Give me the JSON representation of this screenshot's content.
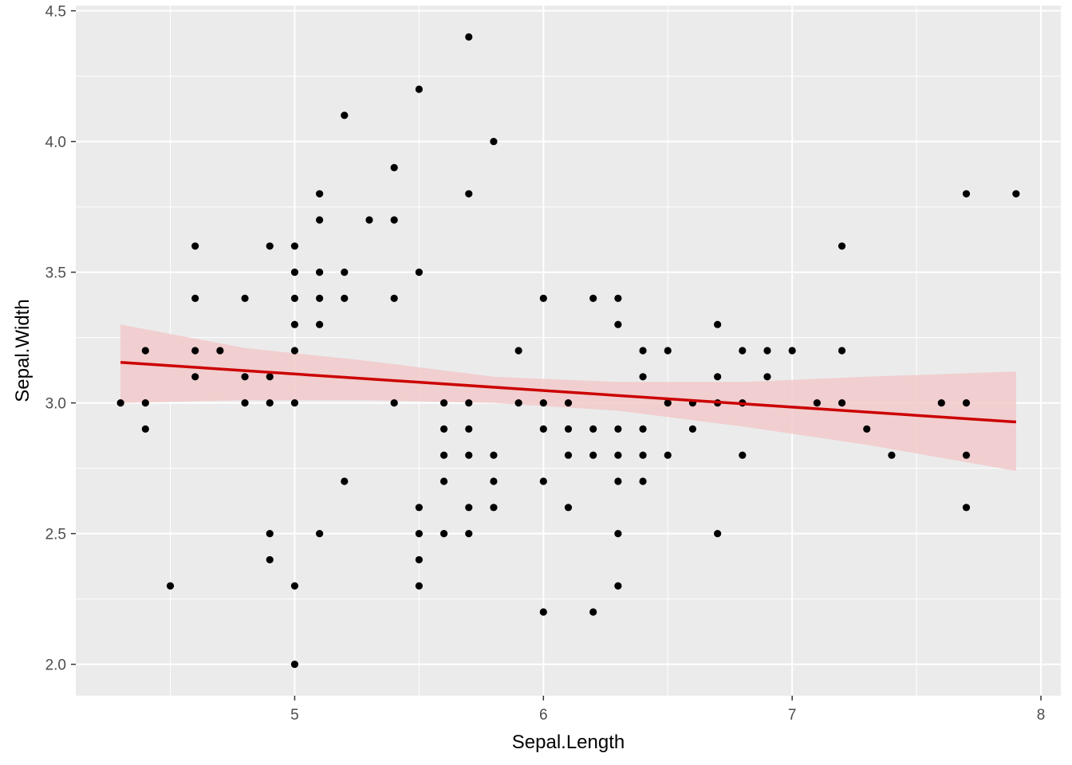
{
  "chart_data": {
    "type": "scatter",
    "title": "",
    "xlabel": "Sepal.Length",
    "ylabel": "Sepal.Width",
    "xlim": [
      4.12,
      8.08
    ],
    "ylim": [
      1.88,
      4.52
    ],
    "x_ticks": [
      5,
      6,
      7,
      8
    ],
    "x_tick_labels": [
      "5",
      "6",
      "7",
      "8"
    ],
    "y_ticks": [
      2.0,
      2.5,
      3.0,
      3.5,
      4.0,
      4.5
    ],
    "y_tick_labels": [
      "2.0",
      "2.5",
      "3.0",
      "3.5",
      "4.0",
      "4.5"
    ],
    "grid": true,
    "legend": "none",
    "colors": {
      "panel": "#ebebeb",
      "grid_major": "#ffffff",
      "points": "#000000",
      "fit_line": "#cc0000",
      "confidence_band": "#f2c9ca"
    },
    "points": [
      [
        4.3,
        3.0
      ],
      [
        4.4,
        3.2
      ],
      [
        4.4,
        3.0
      ],
      [
        4.4,
        2.9
      ],
      [
        4.5,
        2.3
      ],
      [
        4.6,
        3.6
      ],
      [
        4.6,
        3.4
      ],
      [
        4.6,
        3.2
      ],
      [
        4.6,
        3.1
      ],
      [
        4.7,
        3.2
      ],
      [
        4.8,
        3.4
      ],
      [
        4.8,
        3.1
      ],
      [
        4.8,
        3.0
      ],
      [
        4.9,
        3.6
      ],
      [
        4.9,
        3.1
      ],
      [
        4.9,
        3.0
      ],
      [
        4.9,
        2.5
      ],
      [
        4.9,
        2.4
      ],
      [
        5.0,
        3.6
      ],
      [
        5.0,
        3.5
      ],
      [
        5.0,
        3.4
      ],
      [
        5.0,
        3.3
      ],
      [
        5.0,
        3.2
      ],
      [
        5.0,
        3.0
      ],
      [
        5.0,
        2.3
      ],
      [
        5.0,
        2.0
      ],
      [
        5.1,
        3.8
      ],
      [
        5.1,
        3.7
      ],
      [
        5.1,
        3.5
      ],
      [
        5.1,
        3.4
      ],
      [
        5.1,
        3.3
      ],
      [
        5.1,
        2.5
      ],
      [
        5.2,
        4.1
      ],
      [
        5.2,
        3.5
      ],
      [
        5.2,
        3.4
      ],
      [
        5.2,
        2.7
      ],
      [
        5.3,
        3.7
      ],
      [
        5.4,
        3.9
      ],
      [
        5.4,
        3.7
      ],
      [
        5.4,
        3.4
      ],
      [
        5.4,
        3.0
      ],
      [
        5.5,
        4.2
      ],
      [
        5.5,
        3.5
      ],
      [
        5.5,
        2.6
      ],
      [
        5.5,
        2.5
      ],
      [
        5.5,
        2.4
      ],
      [
        5.5,
        2.3
      ],
      [
        5.6,
        3.0
      ],
      [
        5.6,
        2.9
      ],
      [
        5.6,
        2.8
      ],
      [
        5.6,
        2.7
      ],
      [
        5.6,
        2.5
      ],
      [
        5.7,
        4.4
      ],
      [
        5.7,
        3.8
      ],
      [
        5.7,
        3.0
      ],
      [
        5.7,
        2.9
      ],
      [
        5.7,
        2.8
      ],
      [
        5.7,
        2.6
      ],
      [
        5.7,
        2.5
      ],
      [
        5.8,
        4.0
      ],
      [
        5.8,
        2.8
      ],
      [
        5.8,
        2.7
      ],
      [
        5.8,
        2.6
      ],
      [
        5.9,
        3.2
      ],
      [
        5.9,
        3.0
      ],
      [
        6.0,
        3.4
      ],
      [
        6.0,
        3.0
      ],
      [
        6.0,
        2.9
      ],
      [
        6.0,
        2.7
      ],
      [
        6.0,
        2.2
      ],
      [
        6.1,
        3.0
      ],
      [
        6.1,
        2.9
      ],
      [
        6.1,
        2.8
      ],
      [
        6.1,
        2.6
      ],
      [
        6.2,
        3.4
      ],
      [
        6.2,
        2.9
      ],
      [
        6.2,
        2.8
      ],
      [
        6.2,
        2.2
      ],
      [
        6.3,
        3.4
      ],
      [
        6.3,
        3.3
      ],
      [
        6.3,
        2.9
      ],
      [
        6.3,
        2.8
      ],
      [
        6.3,
        2.7
      ],
      [
        6.3,
        2.5
      ],
      [
        6.3,
        2.3
      ],
      [
        6.4,
        3.2
      ],
      [
        6.4,
        3.1
      ],
      [
        6.4,
        2.9
      ],
      [
        6.4,
        2.8
      ],
      [
        6.4,
        2.7
      ],
      [
        6.5,
        3.2
      ],
      [
        6.5,
        3.0
      ],
      [
        6.5,
        2.8
      ],
      [
        6.6,
        3.0
      ],
      [
        6.6,
        2.9
      ],
      [
        6.7,
        3.3
      ],
      [
        6.7,
        3.1
      ],
      [
        6.7,
        3.0
      ],
      [
        6.7,
        2.5
      ],
      [
        6.8,
        3.2
      ],
      [
        6.8,
        3.0
      ],
      [
        6.8,
        2.8
      ],
      [
        6.9,
        3.2
      ],
      [
        6.9,
        3.1
      ],
      [
        7.0,
        3.2
      ],
      [
        7.1,
        3.0
      ],
      [
        7.2,
        3.6
      ],
      [
        7.2,
        3.2
      ],
      [
        7.2,
        3.0
      ],
      [
        7.3,
        2.9
      ],
      [
        7.4,
        2.8
      ],
      [
        7.6,
        3.0
      ],
      [
        7.7,
        3.8
      ],
      [
        7.7,
        3.0
      ],
      [
        7.7,
        2.8
      ],
      [
        7.7,
        2.6
      ],
      [
        7.9,
        3.8
      ]
    ],
    "fit_line": {
      "method": "lm",
      "x": [
        4.3,
        7.9
      ],
      "y": [
        3.155,
        2.927
      ]
    },
    "confidence_band": {
      "x": [
        4.3,
        4.8,
        5.3,
        5.8,
        6.3,
        6.8,
        7.3,
        7.9
      ],
      "lower": [
        3.0,
        3.01,
        3.01,
        3.0,
        2.97,
        2.91,
        2.84,
        2.74
      ],
      "upper": [
        3.3,
        3.21,
        3.16,
        3.1,
        3.08,
        3.08,
        3.1,
        3.12
      ]
    }
  }
}
